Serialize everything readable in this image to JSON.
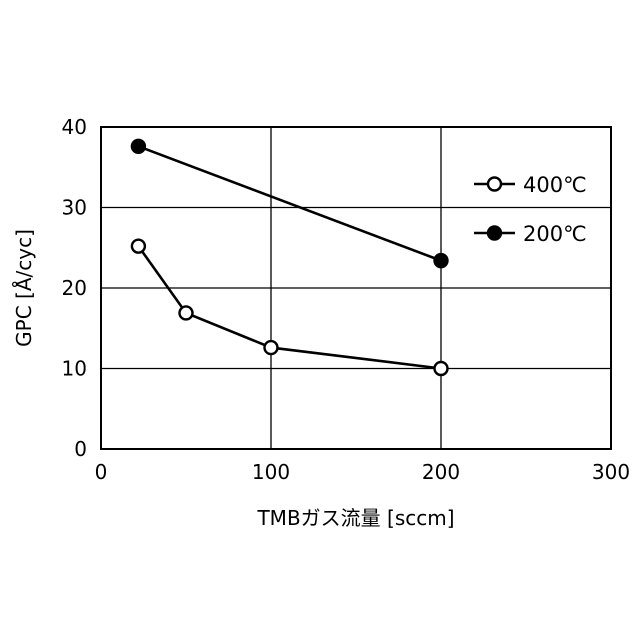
{
  "chart_data": {
    "type": "line",
    "xlabel": "TMBガス流量 [sccm]",
    "ylabel": "GPC [Å/cyc]",
    "xlim": [
      0,
      300
    ],
    "ylim": [
      0,
      40
    ],
    "xticks": [
      0,
      100,
      200,
      300
    ],
    "yticks": [
      0,
      10,
      20,
      30,
      40
    ],
    "grid": true,
    "legend_position": "upper-right",
    "series": [
      {
        "name": "400℃",
        "marker": "open-circle",
        "color": "#000000",
        "x": [
          22,
          50,
          100,
          200
        ],
        "y": [
          25.2,
          16.9,
          12.6,
          10.0
        ]
      },
      {
        "name": "200℃",
        "marker": "filled-circle",
        "color": "#000000",
        "x": [
          22,
          200
        ],
        "y": [
          37.6,
          23.4
        ]
      }
    ]
  }
}
